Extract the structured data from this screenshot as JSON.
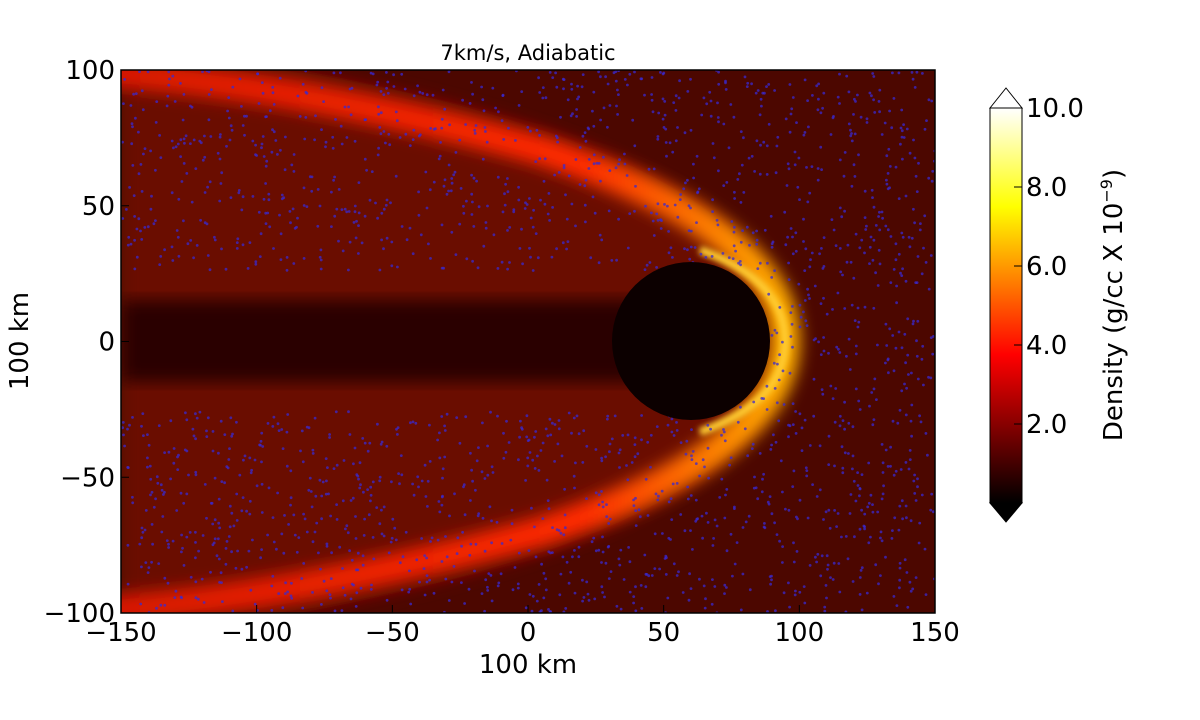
{
  "chart_data": {
    "type": "heatmap",
    "title": "7km/s, Adiabatic",
    "x_label": "100 km",
    "y_label": "100 km",
    "xlim": [
      -150,
      150
    ],
    "ylim": [
      -100,
      100
    ],
    "xticks": [
      {
        "value": -150,
        "label": "−150"
      },
      {
        "value": -100,
        "label": "−100"
      },
      {
        "value": -50,
        "label": "−50"
      },
      0,
      50,
      100,
      150
    ],
    "yticks": [
      {
        "value": -100,
        "label": "−100"
      },
      {
        "value": -50,
        "label": "−50"
      },
      0,
      50,
      100
    ],
    "colormap": "hot",
    "clim": [
      0,
      10
    ],
    "colorbar_ticks": [
      {
        "value": 2,
        "label": "2.0"
      },
      {
        "value": 4,
        "label": "4.0"
      },
      {
        "value": 6,
        "label": "6.0"
      },
      {
        "value": 8,
        "label": "8.0"
      },
      {
        "value": 10,
        "label": "10.0"
      }
    ],
    "colorbar_label": {
      "text": "Density (g/cc X 10",
      "exponent": "−9",
      "close": ")"
    }
  }
}
